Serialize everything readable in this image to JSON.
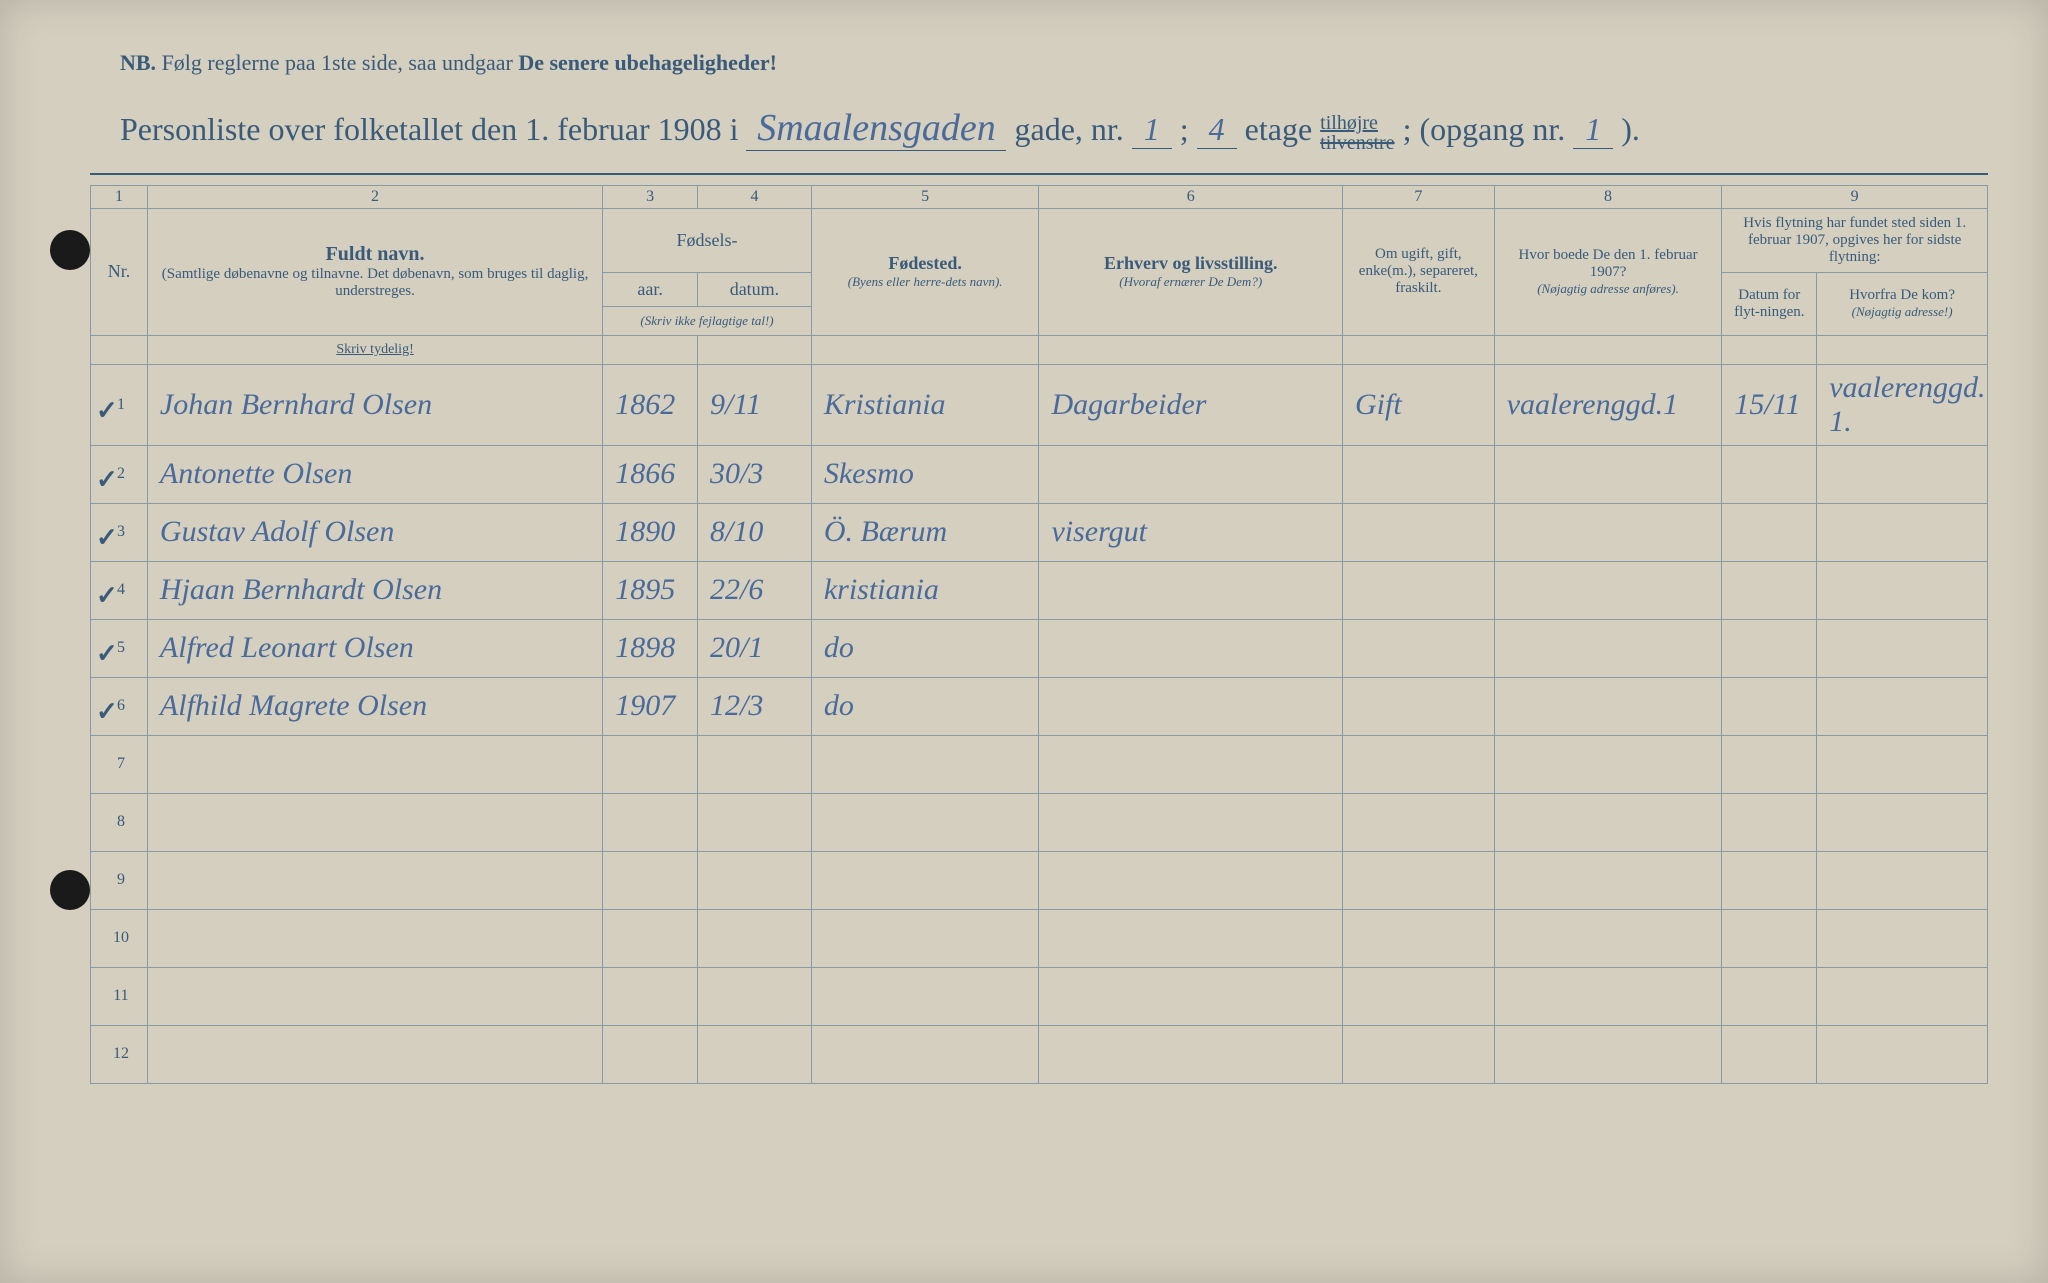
{
  "nb": {
    "prefix": "NB.",
    "text_a": "Følg reglerne paa 1ste side, saa undgaar",
    "text_b": "De senere ubehageligheder!"
  },
  "title": {
    "prefix": "Personliste over folketallet den 1. februar 1908 i",
    "street": "Smaalensgaden",
    "gade_label": "gade, nr.",
    "gade_nr": "1",
    "semicolon1": ";",
    "etage": "4",
    "etage_label": "etage",
    "tilhojre": "tilhøjre",
    "tilvenstre": "tilvenstre",
    "opgang_label": "; (opgang nr.",
    "opgang": "1",
    "close": ")."
  },
  "colnums": [
    "1",
    "2",
    "3",
    "4",
    "5",
    "6",
    "7",
    "8",
    "9"
  ],
  "headers": {
    "nr": "Nr.",
    "fullname": "Fuldt navn.",
    "fullname_sub": "(Samtlige døbenavne og tilnavne. Det døbenavn, som bruges til daglig, understreges.",
    "fodsels": "Fødsels-",
    "aar": "aar.",
    "datum": "datum.",
    "fodsels_sub": "(Skriv ikke fejlagtige tal!)",
    "fodested": "Fødested.",
    "fodested_sub": "(Byens eller herre-dets navn).",
    "erhverv": "Erhverv og livsstilling.",
    "erhverv_sub": "(Hvoraf ernærer De Dem?)",
    "ugift": "Om ugift, gift, enke(m.), separeret, fraskilt.",
    "boede": "Hvor boede De den 1. februar 1907?",
    "boede_sub": "(Nøjagtig adresse anføres).",
    "flytning": "Hvis flytning har fundet sted siden 1. februar 1907, opgives her for sidste flytning:",
    "datum_flyt": "Datum for flyt-ningen.",
    "hvorfra": "Hvorfra De kom?",
    "hvorfra_sub": "(Nøjagtig adresse!)",
    "skriv": "Skriv tydelig!"
  },
  "rows": [
    {
      "nr": "1",
      "name": "Johan Bernhard Olsen",
      "year": "1862",
      "date": "9/11",
      "place": "Kristiania",
      "occ": "Dagarbeider",
      "marital": "Gift",
      "addr": "vaalerenggd.1",
      "movedate": "15/11",
      "from": "vaalerenggd. 1."
    },
    {
      "nr": "2",
      "name": "Antonette Olsen",
      "year": "1866",
      "date": "30/3",
      "place": "Skesmo",
      "occ": "",
      "marital": "",
      "addr": "",
      "movedate": "",
      "from": ""
    },
    {
      "nr": "3",
      "name": "Gustav Adolf Olsen",
      "year": "1890",
      "date": "8/10",
      "place": "Ö. Bærum",
      "occ": "visergut",
      "marital": "",
      "addr": "",
      "movedate": "",
      "from": ""
    },
    {
      "nr": "4",
      "name": "Hjaan Bernhardt Olsen",
      "year": "1895",
      "date": "22/6",
      "place": "kristiania",
      "occ": "",
      "marital": "",
      "addr": "",
      "movedate": "",
      "from": ""
    },
    {
      "nr": "5",
      "name": "Alfred Leonart Olsen",
      "year": "1898",
      "date": "20/1",
      "place": "do",
      "occ": "",
      "marital": "",
      "addr": "",
      "movedate": "",
      "from": ""
    },
    {
      "nr": "6",
      "name": "Alfhild Magrete Olsen",
      "year": "1907",
      "date": "12/3",
      "place": "do",
      "occ": "",
      "marital": "",
      "addr": "",
      "movedate": "",
      "from": ""
    },
    {
      "nr": "7",
      "name": "",
      "year": "",
      "date": "",
      "place": "",
      "occ": "",
      "marital": "",
      "addr": "",
      "movedate": "",
      "from": ""
    },
    {
      "nr": "8",
      "name": "",
      "year": "",
      "date": "",
      "place": "",
      "occ": "",
      "marital": "",
      "addr": "",
      "movedate": "",
      "from": ""
    },
    {
      "nr": "9",
      "name": "",
      "year": "",
      "date": "",
      "place": "",
      "occ": "",
      "marital": "",
      "addr": "",
      "movedate": "",
      "from": ""
    },
    {
      "nr": "10",
      "name": "",
      "year": "",
      "date": "",
      "place": "",
      "occ": "",
      "marital": "",
      "addr": "",
      "movedate": "",
      "from": ""
    },
    {
      "nr": "11",
      "name": "",
      "year": "",
      "date": "",
      "place": "",
      "occ": "",
      "marital": "",
      "addr": "",
      "movedate": "",
      "from": ""
    },
    {
      "nr": "12",
      "name": "",
      "year": "",
      "date": "",
      "place": "",
      "occ": "",
      "marital": "",
      "addr": "",
      "movedate": "",
      "from": ""
    }
  ],
  "colors": {
    "paper": "#d4cfbf",
    "ink_print": "#3a5a7a",
    "ink_hand": "#4a6a9a",
    "rule": "#8a9aa5"
  }
}
